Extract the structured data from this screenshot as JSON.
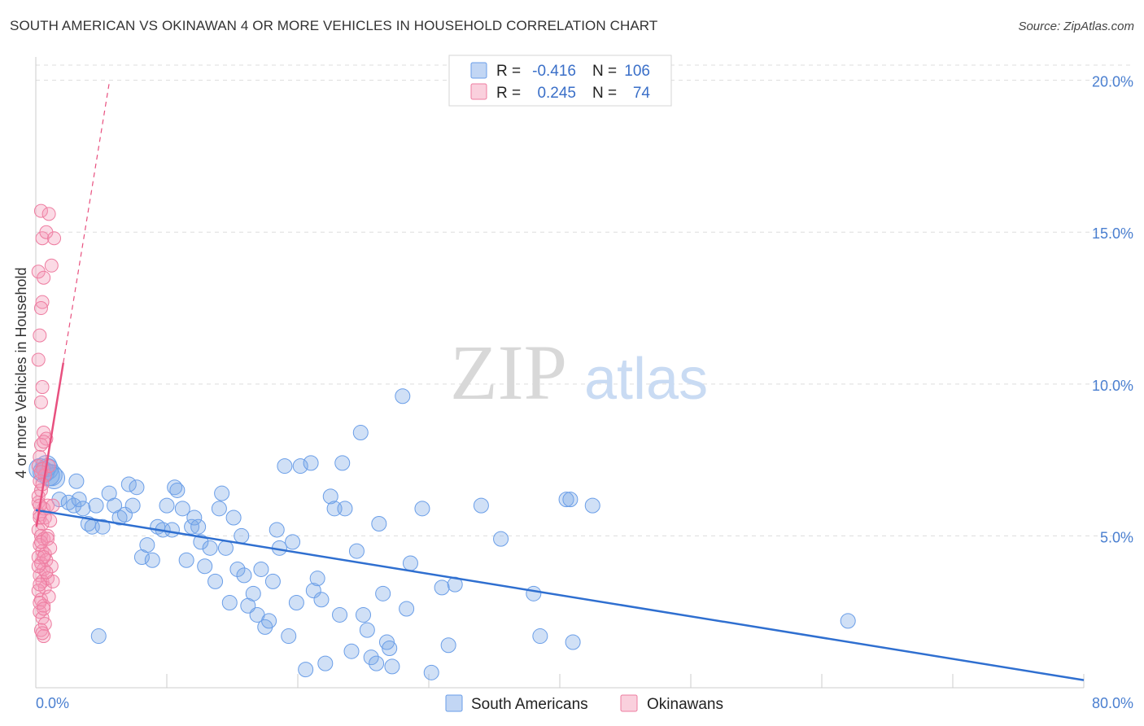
{
  "title": "SOUTH AMERICAN VS OKINAWAN 4 OR MORE VEHICLES IN HOUSEHOLD CORRELATION CHART",
  "source": "Source: ZipAtlas.com",
  "watermark": {
    "zip": "ZIP",
    "atlas": "atlas"
  },
  "colors": {
    "blue": "#6a9ee8",
    "blue_fill": "rgba(120,165,230,0.35)",
    "blue_line": "#2f6fd0",
    "pink": "#ee7ca0",
    "pink_fill": "rgba(244,150,180,0.35)",
    "pink_line": "#e8507f",
    "grid": "#dddddd",
    "tick_text": "#4a7fd0"
  },
  "legend": {
    "rows": [
      {
        "r_label": "R =",
        "r_value": "-0.416",
        "n_label": "N =",
        "n_value": "106",
        "series": "blue"
      },
      {
        "r_label": "R =",
        "r_value": "0.245",
        "n_label": "N =",
        "n_value": "74",
        "series": "pink"
      }
    ]
  },
  "bottom_legend": {
    "items": [
      {
        "label": "South Americans",
        "series": "blue"
      },
      {
        "label": "Okinawans",
        "series": "pink"
      }
    ]
  },
  "chart_data": {
    "type": "scatter",
    "title": "SOUTH AMERICAN VS OKINAWAN 4 OR MORE VEHICLES IN HOUSEHOLD CORRELATION CHART",
    "xlabel": "",
    "ylabel": "4 or more Vehicles in Household",
    "xlim": [
      0,
      80
    ],
    "ylim": [
      0,
      20.5
    ],
    "x_tick_labels": [
      "0.0%",
      "80.0%"
    ],
    "y_ticks": [
      5,
      10,
      15,
      20
    ],
    "y_tick_labels": [
      "5.0%",
      "10.0%",
      "15.0%",
      "20.0%"
    ],
    "grid": true,
    "series": [
      {
        "name": "South Americans",
        "R": -0.416,
        "N": 106,
        "trend": {
          "x": [
            0,
            80
          ],
          "y": [
            5.85,
            0.25
          ]
        },
        "points": [
          [
            0.3,
            7.2
          ],
          [
            0.6,
            7.1
          ],
          [
            0.9,
            7.2
          ],
          [
            1.2,
            7.0
          ],
          [
            1.4,
            6.9
          ],
          [
            0.8,
            7.3
          ],
          [
            1.0,
            7.0
          ],
          [
            3.1,
            6.8
          ],
          [
            1.8,
            6.2
          ],
          [
            2.5,
            6.1
          ],
          [
            2.9,
            6.0
          ],
          [
            3.3,
            6.2
          ],
          [
            3.6,
            5.9
          ],
          [
            4.0,
            5.4
          ],
          [
            4.3,
            5.3
          ],
          [
            4.6,
            6.0
          ],
          [
            5.1,
            5.3
          ],
          [
            5.6,
            6.4
          ],
          [
            6.0,
            6.0
          ],
          [
            6.4,
            5.6
          ],
          [
            6.8,
            5.7
          ],
          [
            7.1,
            6.7
          ],
          [
            7.4,
            6.0
          ],
          [
            7.7,
            6.6
          ],
          [
            8.1,
            4.3
          ],
          [
            8.5,
            4.7
          ],
          [
            8.9,
            4.2
          ],
          [
            9.3,
            5.3
          ],
          [
            9.7,
            5.2
          ],
          [
            10.0,
            6.0
          ],
          [
            10.4,
            5.2
          ],
          [
            10.6,
            6.6
          ],
          [
            10.8,
            6.5
          ],
          [
            11.2,
            5.9
          ],
          [
            11.5,
            4.2
          ],
          [
            11.9,
            5.3
          ],
          [
            12.1,
            5.6
          ],
          [
            12.4,
            5.3
          ],
          [
            12.6,
            4.8
          ],
          [
            12.9,
            4.0
          ],
          [
            13.3,
            4.6
          ],
          [
            13.7,
            3.5
          ],
          [
            14.0,
            5.9
          ],
          [
            14.2,
            6.4
          ],
          [
            14.5,
            4.6
          ],
          [
            14.8,
            2.8
          ],
          [
            15.1,
            5.6
          ],
          [
            15.4,
            3.9
          ],
          [
            15.7,
            5.0
          ],
          [
            15.9,
            3.7
          ],
          [
            16.2,
            2.7
          ],
          [
            16.6,
            3.1
          ],
          [
            16.9,
            2.4
          ],
          [
            17.2,
            3.9
          ],
          [
            17.5,
            2.0
          ],
          [
            17.8,
            2.2
          ],
          [
            18.1,
            3.5
          ],
          [
            18.4,
            5.2
          ],
          [
            18.6,
            4.6
          ],
          [
            19.0,
            7.3
          ],
          [
            19.3,
            1.7
          ],
          [
            19.6,
            4.8
          ],
          [
            19.9,
            2.8
          ],
          [
            20.2,
            7.3
          ],
          [
            20.6,
            0.6
          ],
          [
            21.0,
            7.4
          ],
          [
            21.2,
            3.2
          ],
          [
            21.5,
            3.6
          ],
          [
            21.8,
            2.9
          ],
          [
            22.1,
            0.8
          ],
          [
            22.5,
            6.3
          ],
          [
            22.8,
            5.9
          ],
          [
            23.2,
            2.4
          ],
          [
            23.4,
            7.4
          ],
          [
            23.6,
            5.9
          ],
          [
            24.1,
            1.2
          ],
          [
            24.5,
            4.5
          ],
          [
            24.8,
            8.4
          ],
          [
            25.0,
            2.4
          ],
          [
            25.3,
            1.9
          ],
          [
            25.6,
            1.0
          ],
          [
            26.0,
            0.8
          ],
          [
            26.2,
            5.4
          ],
          [
            26.5,
            3.1
          ],
          [
            26.8,
            1.5
          ],
          [
            27.0,
            1.3
          ],
          [
            27.2,
            0.7
          ],
          [
            28.0,
            9.6
          ],
          [
            28.3,
            2.6
          ],
          [
            28.6,
            4.1
          ],
          [
            29.5,
            5.9
          ],
          [
            30.2,
            0.5
          ],
          [
            31.0,
            3.3
          ],
          [
            31.5,
            1.4
          ],
          [
            32.0,
            3.4
          ],
          [
            34.0,
            6.0
          ],
          [
            35.5,
            4.9
          ],
          [
            38.0,
            3.1
          ],
          [
            38.5,
            1.7
          ],
          [
            40.5,
            6.2
          ],
          [
            40.8,
            6.2
          ],
          [
            41.0,
            1.5
          ],
          [
            42.5,
            6.0
          ],
          [
            62.0,
            2.2
          ],
          [
            4.8,
            1.7
          ]
        ]
      },
      {
        "name": "Okinawans",
        "R": 0.245,
        "N": 74,
        "trend_solid": {
          "x": [
            0.05,
            2.1
          ],
          "y": [
            5.3,
            10.7
          ]
        },
        "trend_dashed": {
          "x": [
            2.1,
            5.6
          ],
          "y": [
            10.7,
            19.9
          ]
        },
        "points": [
          [
            0.2,
            13.7
          ],
          [
            0.4,
            15.7
          ],
          [
            0.5,
            14.8
          ],
          [
            0.8,
            15.0
          ],
          [
            1.0,
            15.6
          ],
          [
            1.4,
            14.8
          ],
          [
            0.6,
            13.5
          ],
          [
            1.2,
            13.9
          ],
          [
            0.5,
            12.7
          ],
          [
            0.4,
            12.5
          ],
          [
            0.3,
            11.6
          ],
          [
            0.2,
            10.8
          ],
          [
            0.5,
            9.9
          ],
          [
            0.4,
            9.4
          ],
          [
            0.6,
            8.4
          ],
          [
            0.8,
            8.2
          ],
          [
            0.4,
            8.0
          ],
          [
            0.3,
            7.6
          ],
          [
            0.2,
            7.3
          ],
          [
            0.5,
            7.2
          ],
          [
            0.7,
            7.0
          ],
          [
            1.0,
            7.3
          ],
          [
            0.3,
            6.8
          ],
          [
            0.4,
            6.5
          ],
          [
            0.2,
            6.1
          ],
          [
            0.6,
            5.9
          ],
          [
            0.9,
            6.0
          ],
          [
            1.3,
            6.0
          ],
          [
            0.3,
            5.7
          ],
          [
            0.5,
            5.4
          ],
          [
            0.2,
            5.2
          ],
          [
            0.4,
            5.0
          ],
          [
            0.6,
            4.9
          ],
          [
            0.9,
            5.0
          ],
          [
            0.3,
            4.7
          ],
          [
            0.5,
            4.5
          ],
          [
            0.7,
            4.4
          ],
          [
            1.1,
            4.6
          ],
          [
            0.2,
            4.3
          ],
          [
            0.4,
            4.1
          ],
          [
            0.6,
            3.9
          ],
          [
            0.8,
            4.2
          ],
          [
            1.2,
            4.0
          ],
          [
            0.3,
            3.7
          ],
          [
            0.5,
            3.5
          ],
          [
            0.7,
            3.3
          ],
          [
            0.9,
            3.6
          ],
          [
            1.3,
            3.5
          ],
          [
            0.2,
            3.2
          ],
          [
            0.4,
            2.9
          ],
          [
            0.6,
            2.7
          ],
          [
            1.0,
            3.0
          ],
          [
            0.3,
            2.5
          ],
          [
            0.5,
            2.3
          ],
          [
            0.7,
            2.1
          ],
          [
            0.4,
            1.9
          ],
          [
            0.6,
            1.7
          ],
          [
            0.2,
            6.3
          ],
          [
            0.3,
            5.6
          ],
          [
            0.5,
            6.7
          ],
          [
            0.4,
            4.8
          ],
          [
            0.6,
            4.3
          ],
          [
            0.8,
            3.8
          ],
          [
            0.3,
            2.8
          ],
          [
            0.5,
            1.8
          ],
          [
            0.2,
            4.0
          ],
          [
            0.7,
            5.6
          ],
          [
            0.9,
            4.9
          ],
          [
            0.3,
            3.4
          ],
          [
            0.6,
            2.6
          ],
          [
            1.1,
            5.5
          ],
          [
            0.4,
            7.1
          ],
          [
            0.6,
            8.1
          ],
          [
            0.3,
            6.0
          ]
        ]
      }
    ]
  }
}
